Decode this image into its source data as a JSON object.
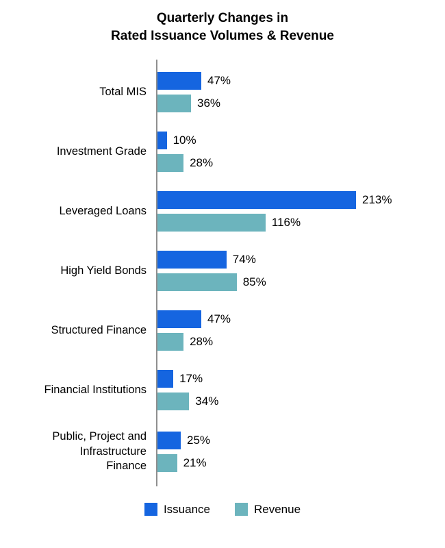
{
  "title": "Quarterly Changes in\nRated Issuance Volumes & Revenue",
  "chart_data": {
    "type": "bar",
    "orientation": "horizontal",
    "title": "Quarterly Changes in Rated Issuance Volumes & Revenue",
    "categories": [
      "Total MIS",
      "Investment Grade",
      "Leveraged Loans",
      "High Yield Bonds",
      "Structured Finance",
      "Financial Institutions",
      "Public, Project and\nInfrastructure\nFinance"
    ],
    "series": [
      {
        "name": "Issuance",
        "color": "#1565e0",
        "values": [
          47,
          10,
          213,
          74,
          47,
          17,
          25
        ]
      },
      {
        "name": "Revenue",
        "color": "#6cb4bd",
        "values": [
          36,
          28,
          116,
          85,
          28,
          34,
          21
        ]
      }
    ],
    "value_suffix": "%",
    "xlim": [
      0,
      220
    ],
    "grid": false,
    "legend_position": "bottom"
  },
  "colors": {
    "axis": "#8f8f8f",
    "text": "#000000",
    "background": "#ffffff"
  }
}
